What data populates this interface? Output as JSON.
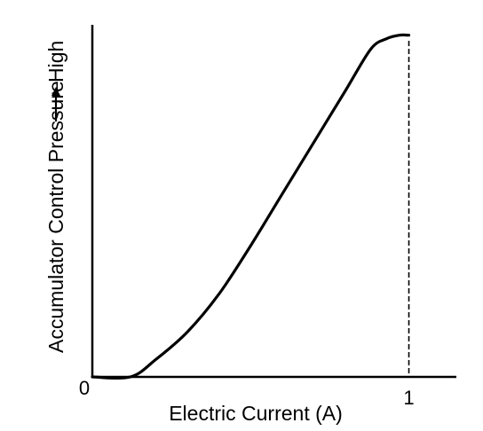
{
  "chart_data": {
    "type": "line",
    "title": "",
    "xlabel": "Electric Current (A)",
    "ylabel": "Accumulator Control Pressure",
    "ylabel_prefix": "High",
    "x_tick_labels": [
      "0",
      "1"
    ],
    "x_ticks": [
      0,
      1
    ],
    "xlim": [
      0,
      1.15
    ],
    "ylim": [
      0,
      1.02
    ],
    "grid": false,
    "legend": "none",
    "reference_line_x": 1,
    "series": [
      {
        "x": [
          0.0,
          0.12,
          0.2,
          0.3,
          0.4,
          0.5,
          0.6,
          0.7,
          0.8,
          0.88,
          0.93,
          0.97,
          1.0
        ],
        "y": [
          0.0,
          0.0,
          0.05,
          0.13,
          0.24,
          0.38,
          0.53,
          0.68,
          0.83,
          0.95,
          0.98,
          0.99,
          0.99
        ]
      }
    ]
  }
}
